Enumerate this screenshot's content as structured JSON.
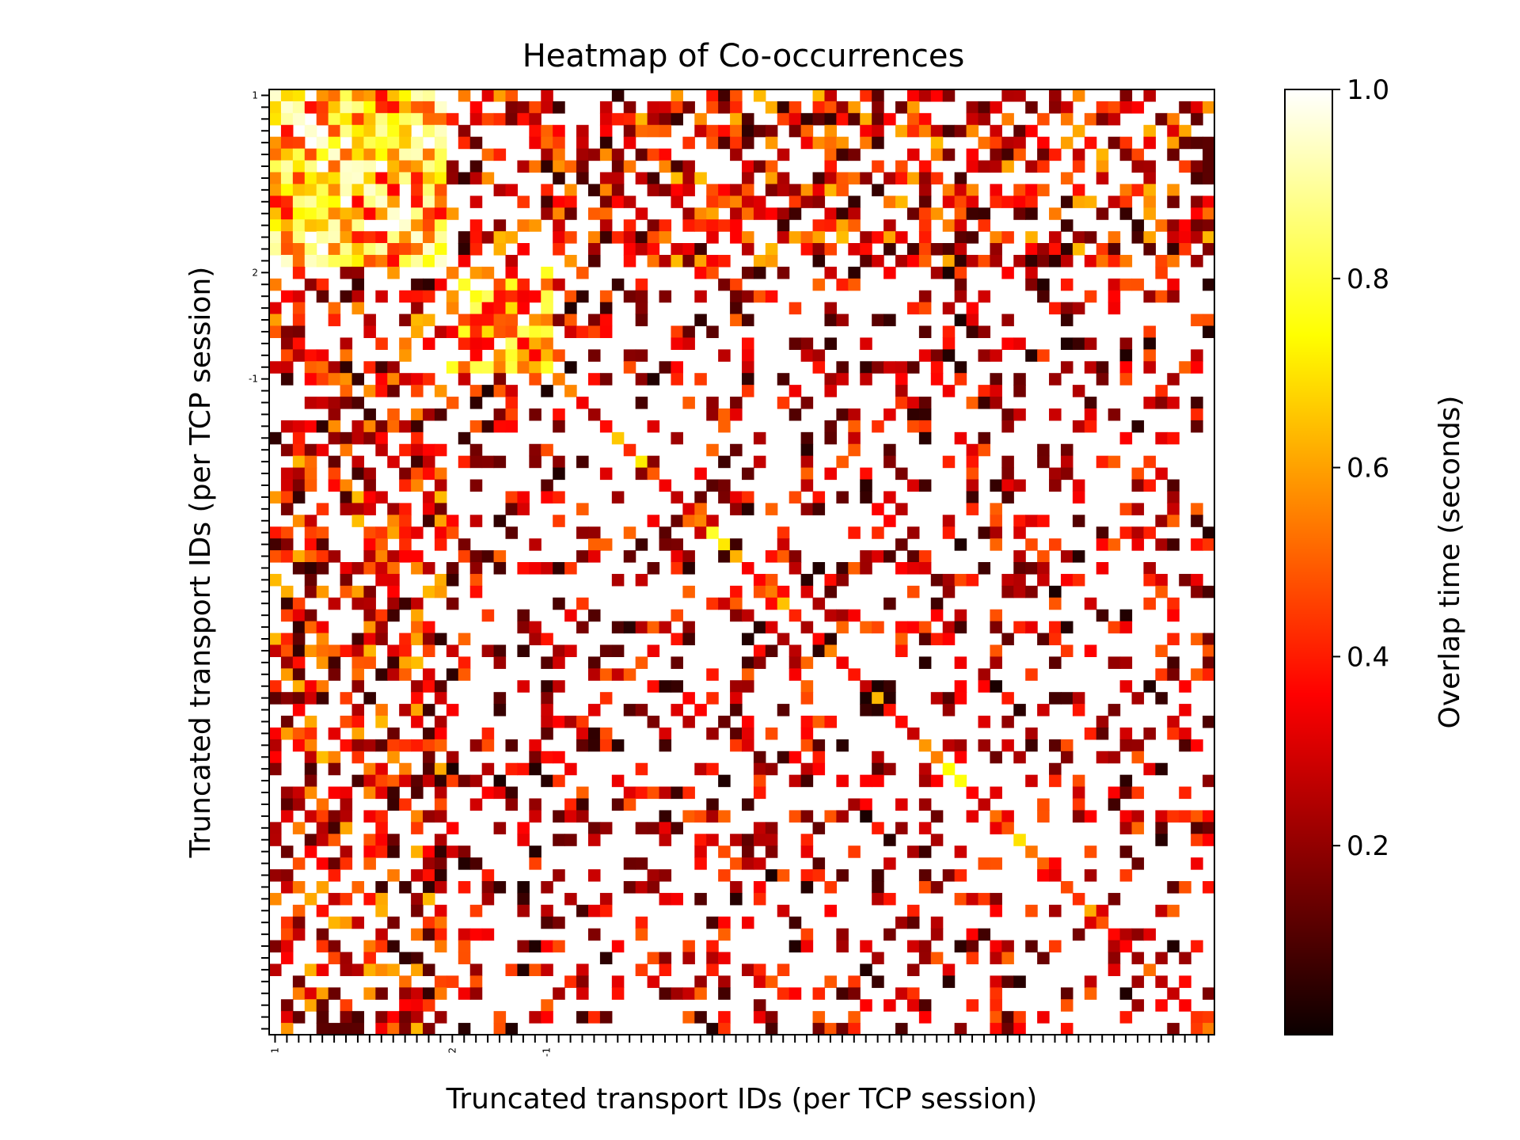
{
  "chart_data": {
    "type": "heatmap",
    "title": "Heatmap of Co-occurrences",
    "xlabel": "Truncated transport IDs (per TCP session)",
    "ylabel": "Truncated transport IDs (per TCP session)",
    "rows": 80,
    "cols": 80,
    "x_tick_labels": [
      {
        "index": 0,
        "label": "1"
      },
      {
        "index": 15,
        "label": "2"
      },
      {
        "index": 23,
        "label": "-1"
      }
    ],
    "y_tick_labels": [
      {
        "index": 0,
        "label": "1"
      },
      {
        "index": 15,
        "label": "2"
      },
      {
        "index": 24,
        "label": "-1"
      }
    ],
    "colorbar": {
      "label": "Overlap time (seconds)",
      "colormap": "hot",
      "range": [
        0.0,
        1.0
      ],
      "ticks": [
        "0.2",
        "0.4",
        "0.6",
        "0.8",
        "1.0"
      ]
    },
    "missing_value_color": "#ffffff",
    "notes_on_values": "Cell values are overlap times in seconds (0 to 1). Blank cells have no co-occurrence. The matrix is symmetric; the upper-left block (IDs 1 to 2) shows the highest overlaps (yellow/white)."
  }
}
